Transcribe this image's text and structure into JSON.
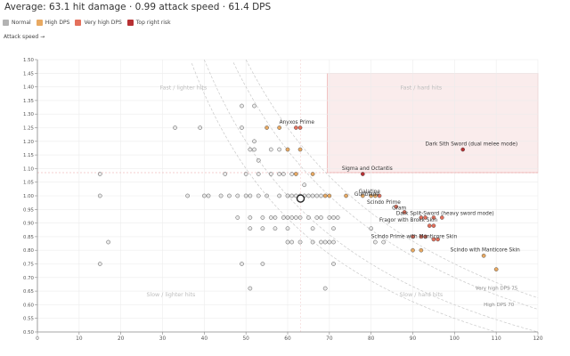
{
  "header": {
    "title": "Average: 63.1 hit damage · 0.99 attack speed · 61.4 DPS",
    "axis_note": "Attack speed →"
  },
  "legend": [
    {
      "label": "Normal",
      "color": "#b3b3b3"
    },
    {
      "label": "High DPS",
      "color": "#e8a962"
    },
    {
      "label": "Very high DPS",
      "color": "#e4705c"
    },
    {
      "label": "Top right risk",
      "color": "#b73033"
    }
  ],
  "chart_data": {
    "type": "scatter",
    "xlim": [
      0,
      120
    ],
    "ylim": [
      0.5,
      1.5
    ],
    "x_ticks": [
      0,
      10,
      20,
      30,
      40,
      50,
      60,
      70,
      80,
      90,
      100,
      110,
      120
    ],
    "y_ticks": [
      0.5,
      0.55,
      0.6,
      0.65,
      0.7,
      0.75,
      0.8,
      0.85,
      0.9,
      0.95,
      1.0,
      1.05,
      1.1,
      1.15,
      1.2,
      1.25,
      1.3,
      1.35,
      1.4,
      1.45,
      1.5
    ],
    "grid": true,
    "colors": {
      "normal": "#c2c2c2",
      "high": "#e8a962",
      "very_high": "#e4705c",
      "top": "#b73033"
    },
    "average": {
      "x": 63.1,
      "y": 0.99
    },
    "quadrants": [
      {
        "label": "Fast / lighter hits",
        "x": 35,
        "y": 1.39
      },
      {
        "label": "Fast / hard hits",
        "x": 92,
        "y": 1.39
      },
      {
        "label": "Slow / lighter hits",
        "x": 32,
        "y": 0.63
      },
      {
        "label": "Slow / hard hits",
        "x": 92,
        "y": 0.63
      }
    ],
    "curves": [
      {
        "label": "Very high DPS 75",
        "dps": 75
      },
      {
        "label": "High DPS 70",
        "dps": 70
      },
      {
        "label": "",
        "dps": 60
      },
      {
        "label": "",
        "dps": 55
      }
    ],
    "points": [
      {
        "x": 49,
        "y": 1.33,
        "c": "normal"
      },
      {
        "x": 52,
        "y": 1.33,
        "c": "normal"
      },
      {
        "x": 33,
        "y": 1.25,
        "c": "normal"
      },
      {
        "x": 39,
        "y": 1.25,
        "c": "normal"
      },
      {
        "x": 49,
        "y": 1.25,
        "c": "normal"
      },
      {
        "x": 55,
        "y": 1.25,
        "c": "high"
      },
      {
        "x": 58,
        "y": 1.25,
        "c": "high"
      },
      {
        "x": 62,
        "y": 1.25,
        "c": "very_high"
      },
      {
        "x": 63,
        "y": 1.25,
        "c": "very_high"
      },
      {
        "x": 52,
        "y": 1.2,
        "c": "normal"
      },
      {
        "x": 51,
        "y": 1.17,
        "c": "normal"
      },
      {
        "x": 52,
        "y": 1.17,
        "c": "normal"
      },
      {
        "x": 56,
        "y": 1.17,
        "c": "normal"
      },
      {
        "x": 58,
        "y": 1.17,
        "c": "normal"
      },
      {
        "x": 60,
        "y": 1.17,
        "c": "high"
      },
      {
        "x": 63,
        "y": 1.17,
        "c": "high"
      },
      {
        "x": 102,
        "y": 1.17,
        "c": "top"
      },
      {
        "x": 53,
        "y": 1.13,
        "c": "normal"
      },
      {
        "x": 15,
        "y": 1.08,
        "c": "normal"
      },
      {
        "x": 45,
        "y": 1.08,
        "c": "normal"
      },
      {
        "x": 50,
        "y": 1.08,
        "c": "normal"
      },
      {
        "x": 53,
        "y": 1.08,
        "c": "normal"
      },
      {
        "x": 56,
        "y": 1.08,
        "c": "normal"
      },
      {
        "x": 58,
        "y": 1.08,
        "c": "normal"
      },
      {
        "x": 59,
        "y": 1.08,
        "c": "normal"
      },
      {
        "x": 61,
        "y": 1.08,
        "c": "normal"
      },
      {
        "x": 62,
        "y": 1.08,
        "c": "high"
      },
      {
        "x": 66,
        "y": 1.08,
        "c": "high"
      },
      {
        "x": 78,
        "y": 1.08,
        "c": "top"
      },
      {
        "x": 64,
        "y": 1.04,
        "c": "normal"
      },
      {
        "x": 15,
        "y": 1.0,
        "c": "normal"
      },
      {
        "x": 36,
        "y": 1.0,
        "c": "normal"
      },
      {
        "x": 40,
        "y": 1.0,
        "c": "normal"
      },
      {
        "x": 41,
        "y": 1.0,
        "c": "normal"
      },
      {
        "x": 44,
        "y": 1.0,
        "c": "normal"
      },
      {
        "x": 46,
        "y": 1.0,
        "c": "normal"
      },
      {
        "x": 48,
        "y": 1.0,
        "c": "normal"
      },
      {
        "x": 50,
        "y": 1.0,
        "c": "normal"
      },
      {
        "x": 51,
        "y": 1.0,
        "c": "normal"
      },
      {
        "x": 53,
        "y": 1.0,
        "c": "normal"
      },
      {
        "x": 55,
        "y": 1.0,
        "c": "normal"
      },
      {
        "x": 58,
        "y": 1.0,
        "c": "normal"
      },
      {
        "x": 60,
        "y": 1.0,
        "c": "normal"
      },
      {
        "x": 61,
        "y": 1.0,
        "c": "normal"
      },
      {
        "x": 62,
        "y": 1.0,
        "c": "normal"
      },
      {
        "x": 63,
        "y": 1.0,
        "c": "normal"
      },
      {
        "x": 64,
        "y": 1.0,
        "c": "normal"
      },
      {
        "x": 65,
        "y": 1.0,
        "c": "normal"
      },
      {
        "x": 66,
        "y": 1.0,
        "c": "normal"
      },
      {
        "x": 67,
        "y": 1.0,
        "c": "normal"
      },
      {
        "x": 68,
        "y": 1.0,
        "c": "normal"
      },
      {
        "x": 69,
        "y": 1.0,
        "c": "high"
      },
      {
        "x": 70,
        "y": 1.0,
        "c": "high"
      },
      {
        "x": 74,
        "y": 1.0,
        "c": "high"
      },
      {
        "x": 78,
        "y": 1.0,
        "c": "high"
      },
      {
        "x": 80,
        "y": 1.0,
        "c": "high"
      },
      {
        "x": 81,
        "y": 1.0,
        "c": "high"
      },
      {
        "x": 82,
        "y": 1.0,
        "c": "very_high"
      },
      {
        "x": 86,
        "y": 0.96,
        "c": "very_high"
      },
      {
        "x": 57,
        "y": 0.92,
        "c": "normal"
      },
      {
        "x": 59,
        "y": 0.92,
        "c": "normal"
      },
      {
        "x": 61,
        "y": 0.92,
        "c": "normal"
      },
      {
        "x": 48,
        "y": 0.92,
        "c": "normal"
      },
      {
        "x": 51,
        "y": 0.92,
        "c": "normal"
      },
      {
        "x": 54,
        "y": 0.92,
        "c": "normal"
      },
      {
        "x": 56,
        "y": 0.92,
        "c": "normal"
      },
      {
        "x": 60,
        "y": 0.92,
        "c": "normal"
      },
      {
        "x": 62,
        "y": 0.92,
        "c": "normal"
      },
      {
        "x": 63,
        "y": 0.92,
        "c": "normal"
      },
      {
        "x": 65,
        "y": 0.92,
        "c": "normal"
      },
      {
        "x": 67,
        "y": 0.92,
        "c": "normal"
      },
      {
        "x": 68,
        "y": 0.92,
        "c": "normal"
      },
      {
        "x": 70,
        "y": 0.92,
        "c": "normal"
      },
      {
        "x": 71,
        "y": 0.92,
        "c": "normal"
      },
      {
        "x": 72,
        "y": 0.92,
        "c": "normal"
      },
      {
        "x": 88,
        "y": 0.94,
        "c": "very_high"
      },
      {
        "x": 92,
        "y": 0.92,
        "c": "very_high"
      },
      {
        "x": 93,
        "y": 0.92,
        "c": "very_high"
      },
      {
        "x": 95,
        "y": 0.92,
        "c": "very_high"
      },
      {
        "x": 97,
        "y": 0.92,
        "c": "very_high"
      },
      {
        "x": 94,
        "y": 0.89,
        "c": "very_high"
      },
      {
        "x": 95,
        "y": 0.89,
        "c": "very_high"
      },
      {
        "x": 90,
        "y": 0.85,
        "c": "very_high"
      },
      {
        "x": 92,
        "y": 0.85,
        "c": "very_high"
      },
      {
        "x": 93,
        "y": 0.85,
        "c": "very_high"
      },
      {
        "x": 95,
        "y": 0.84,
        "c": "very_high"
      },
      {
        "x": 96,
        "y": 0.84,
        "c": "very_high"
      },
      {
        "x": 51,
        "y": 0.88,
        "c": "normal"
      },
      {
        "x": 54,
        "y": 0.88,
        "c": "normal"
      },
      {
        "x": 57,
        "y": 0.88,
        "c": "normal"
      },
      {
        "x": 60,
        "y": 0.88,
        "c": "normal"
      },
      {
        "x": 66,
        "y": 0.88,
        "c": "normal"
      },
      {
        "x": 71,
        "y": 0.88,
        "c": "normal"
      },
      {
        "x": 80,
        "y": 0.88,
        "c": "normal"
      },
      {
        "x": 60,
        "y": 0.83,
        "c": "normal"
      },
      {
        "x": 61,
        "y": 0.83,
        "c": "normal"
      },
      {
        "x": 63,
        "y": 0.83,
        "c": "normal"
      },
      {
        "x": 66,
        "y": 0.83,
        "c": "normal"
      },
      {
        "x": 68,
        "y": 0.83,
        "c": "normal"
      },
      {
        "x": 69,
        "y": 0.83,
        "c": "normal"
      },
      {
        "x": 70,
        "y": 0.83,
        "c": "normal"
      },
      {
        "x": 71,
        "y": 0.83,
        "c": "normal"
      },
      {
        "x": 81,
        "y": 0.83,
        "c": "normal"
      },
      {
        "x": 83,
        "y": 0.83,
        "c": "normal"
      },
      {
        "x": 17,
        "y": 0.83,
        "c": "normal"
      },
      {
        "x": 90,
        "y": 0.8,
        "c": "high"
      },
      {
        "x": 92,
        "y": 0.8,
        "c": "high"
      },
      {
        "x": 107,
        "y": 0.78,
        "c": "high"
      },
      {
        "x": 110,
        "y": 0.73,
        "c": "high"
      },
      {
        "x": 15,
        "y": 0.75,
        "c": "normal"
      },
      {
        "x": 49,
        "y": 0.75,
        "c": "normal"
      },
      {
        "x": 54,
        "y": 0.75,
        "c": "normal"
      },
      {
        "x": 71,
        "y": 0.75,
        "c": "normal"
      },
      {
        "x": 51,
        "y": 0.66,
        "c": "normal"
      },
      {
        "x": 69,
        "y": 0.66,
        "c": "normal"
      }
    ],
    "labels": [
      {
        "text": "Anyxos Prime",
        "x": 58,
        "y": 1.265
      },
      {
        "text": "Dark Sith Sword (dual melee mode)",
        "x": 93,
        "y": 1.185
      },
      {
        "text": "Sigma and Octantis",
        "x": 73,
        "y": 1.095
      },
      {
        "text": "Galatine",
        "x": 77,
        "y": 1.01
      },
      {
        "text": "Gunblade",
        "x": 76,
        "y": 1.0
      },
      {
        "text": "Scindo Prime",
        "x": 79,
        "y": 0.97
      },
      {
        "text": "Gram",
        "x": 85,
        "y": 0.95
      },
      {
        "text": "Dark Split-Sword (heavy sword mode)",
        "x": 86,
        "y": 0.93
      },
      {
        "text": "Fragor with Brokk Skin",
        "x": 82,
        "y": 0.905
      },
      {
        "text": "Scindo Prime with Manticore Skin",
        "x": 80,
        "y": 0.845
      },
      {
        "text": "Scindo with Manticore Skin",
        "x": 99,
        "y": 0.795
      },
      {
        "text": "Very high DPS 75",
        "x": 105,
        "y": 0.655
      },
      {
        "text": "High DPS 70",
        "x": 107,
        "y": 0.595
      }
    ]
  }
}
